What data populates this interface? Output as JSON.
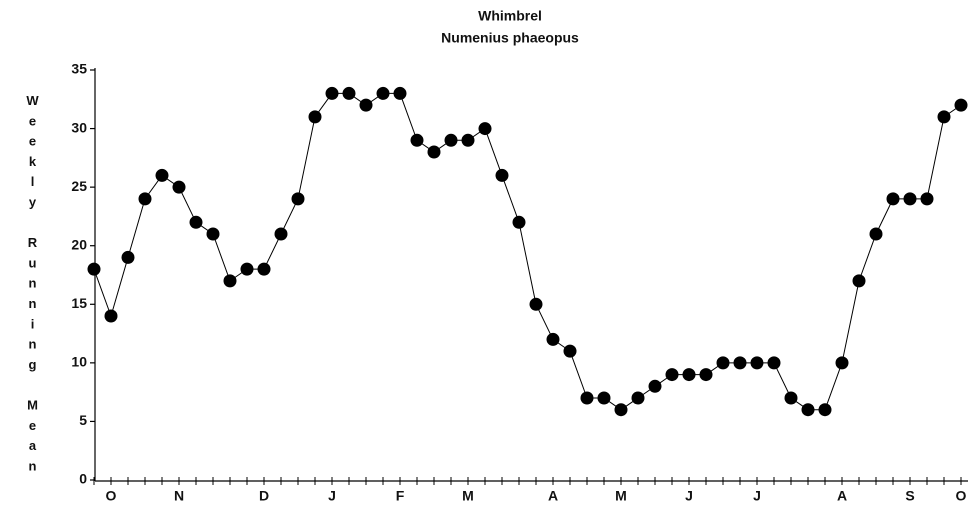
{
  "chart_data": {
    "type": "line",
    "title": "Whimbrel",
    "subtitle": "Numenius phaeopus",
    "y_label": "Weekly Running Mean",
    "categories": [
      null,
      "O",
      null,
      null,
      null,
      "N",
      null,
      null,
      null,
      null,
      "D",
      null,
      null,
      null,
      "J",
      null,
      null,
      null,
      "F",
      null,
      null,
      null,
      "M",
      null,
      null,
      null,
      null,
      "A",
      null,
      null,
      null,
      "M",
      null,
      null,
      null,
      "J",
      null,
      null,
      null,
      "J",
      null,
      null,
      null,
      null,
      "A",
      null,
      null,
      null,
      "S",
      null,
      null,
      "O"
    ],
    "values": [
      18,
      14,
      19,
      24,
      26,
      25,
      22,
      21,
      17,
      18,
      18,
      21,
      24,
      31,
      33,
      33,
      32,
      33,
      33,
      29,
      28,
      29,
      29,
      30,
      26,
      22,
      15,
      12,
      11,
      7,
      7,
      6,
      7,
      8,
      9,
      9,
      9,
      10,
      10,
      10,
      10,
      7,
      6,
      6,
      10,
      17,
      21,
      24,
      24,
      24,
      31,
      32
    ],
    "color": "#000000",
    "ylim": [
      0,
      35
    ],
    "yticks": [
      0,
      5,
      10,
      15,
      20,
      25,
      30,
      35
    ]
  }
}
